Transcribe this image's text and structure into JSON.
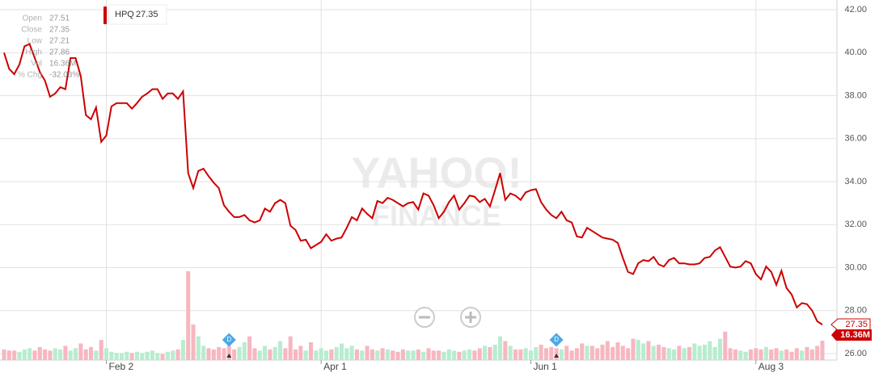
{
  "chart_data": {
    "type": "line",
    "series": [
      {
        "name": "HPQ",
        "color": "#cc0000",
        "values": [
          40.0,
          39.25,
          39.0,
          39.45,
          40.3,
          40.4,
          39.75,
          39.1,
          38.7,
          37.95,
          38.1,
          38.4,
          38.3,
          39.75,
          39.75,
          38.9,
          37.1,
          36.9,
          37.45,
          35.85,
          36.15,
          37.5,
          37.65,
          37.65,
          37.65,
          37.4,
          37.65,
          37.95,
          38.1,
          38.3,
          38.3,
          37.85,
          38.1,
          38.1,
          37.85,
          38.2,
          34.4,
          33.7,
          34.5,
          34.6,
          34.25,
          33.95,
          33.7,
          32.9,
          32.6,
          32.35,
          32.35,
          32.45,
          32.2,
          32.1,
          32.2,
          32.75,
          32.6,
          33.0,
          33.15,
          33.0,
          31.95,
          31.75,
          31.25,
          31.3,
          30.9,
          31.05,
          31.2,
          31.55,
          31.25,
          31.35,
          31.4,
          31.85,
          32.35,
          32.2,
          32.75,
          32.5,
          32.3,
          33.1,
          33.0,
          33.25,
          33.15,
          33.0,
          32.85,
          33.0,
          33.05,
          32.7,
          33.45,
          33.35,
          32.9,
          32.3,
          32.6,
          33.05,
          33.35,
          32.7,
          33.0,
          33.35,
          33.3,
          33.05,
          33.2,
          32.85,
          33.6,
          34.4,
          33.15,
          33.45,
          33.35,
          33.15,
          33.5,
          33.6,
          33.65,
          33.05,
          32.7,
          32.45,
          32.3,
          32.6,
          32.2,
          32.1,
          31.45,
          31.4,
          31.85,
          31.7,
          31.55,
          31.4,
          31.35,
          31.3,
          31.15,
          30.45,
          29.8,
          29.7,
          30.2,
          30.35,
          30.3,
          30.5,
          30.15,
          30.05,
          30.35,
          30.45,
          30.2,
          30.2,
          30.15,
          30.15,
          30.2,
          30.45,
          30.5,
          30.8,
          30.95,
          30.5,
          30.05,
          30.0,
          30.05,
          30.3,
          30.2,
          29.7,
          29.45,
          30.05,
          29.8,
          29.2,
          29.85,
          29.05,
          28.75,
          28.15,
          28.35,
          28.3,
          28.0,
          27.5,
          27.35
        ]
      }
    ],
    "volume": {
      "up_color": "#b8ecd0",
      "down_color": "#f7b7c0",
      "values": [
        9,
        8,
        8,
        7,
        9,
        10,
        8,
        11,
        9,
        8,
        10,
        9,
        12,
        8,
        10,
        14,
        9,
        11,
        8,
        17,
        10,
        7,
        6,
        6,
        7,
        6,
        7,
        6,
        7,
        8,
        6,
        5,
        7,
        8,
        9,
        17,
        75,
        30,
        20,
        12,
        10,
        9,
        11,
        10,
        12,
        9,
        11,
        15,
        20,
        10,
        8,
        12,
        9,
        11,
        16,
        10,
        20,
        9,
        12,
        8,
        15,
        8,
        10,
        8,
        9,
        11,
        14,
        10,
        12,
        9,
        8,
        12,
        9,
        8,
        10,
        9,
        8,
        7,
        9,
        8,
        8,
        9,
        7,
        10,
        8,
        8,
        7,
        9,
        8,
        7,
        8,
        9,
        8,
        10,
        12,
        11,
        13,
        20,
        16,
        12,
        9,
        9,
        10,
        8,
        11,
        13,
        10,
        11,
        10,
        9,
        12,
        8,
        10,
        14,
        12,
        12,
        10,
        13,
        16,
        11,
        15,
        12,
        10,
        18,
        17,
        14,
        16,
        12,
        13,
        11,
        10,
        9,
        12,
        10,
        11,
        14,
        12,
        13,
        16,
        11,
        18,
        24,
        10,
        9,
        8,
        7,
        9,
        10,
        9,
        11,
        9,
        10,
        8,
        9,
        7,
        10,
        8,
        11,
        9,
        12,
        16.36
      ]
    },
    "x_labels": [
      {
        "index": 20,
        "label": "Feb 2"
      },
      {
        "index": 62,
        "label": "Apr 1"
      },
      {
        "index": 103,
        "label": "Jun 1"
      },
      {
        "index": 147,
        "label": "Aug 3"
      }
    ],
    "events": [
      {
        "index": 44,
        "label": "D"
      },
      {
        "index": 108,
        "label": "D"
      }
    ],
    "ylim": [
      26,
      42
    ],
    "yticks": [
      {
        "value": 26,
        "label": "26.00"
      },
      {
        "value": 28,
        "label": "28.00"
      },
      {
        "value": 30,
        "label": "30.00"
      },
      {
        "value": 32,
        "label": "32.00"
      },
      {
        "value": 34,
        "label": "34.00"
      },
      {
        "value": 36,
        "label": "36.00"
      },
      {
        "value": 38,
        "label": "38.00"
      },
      {
        "value": 40,
        "label": "40.00"
      },
      {
        "value": 42,
        "label": "42.00"
      }
    ],
    "grid": true,
    "last_price_label": "27.35",
    "last_volume_label": "16.36M",
    "info": [
      {
        "label": "Open",
        "value": "27.51"
      },
      {
        "label": "Close",
        "value": "27.35"
      },
      {
        "label": "Low",
        "value": "27.21"
      },
      {
        "label": "High",
        "value": "27.86"
      },
      {
        "label": "Vol",
        "value": "16.36M"
      },
      {
        "label": "% Chg",
        "value": "-32.03%"
      }
    ],
    "watermark": [
      "YAHOO!",
      "FINANCE"
    ]
  }
}
